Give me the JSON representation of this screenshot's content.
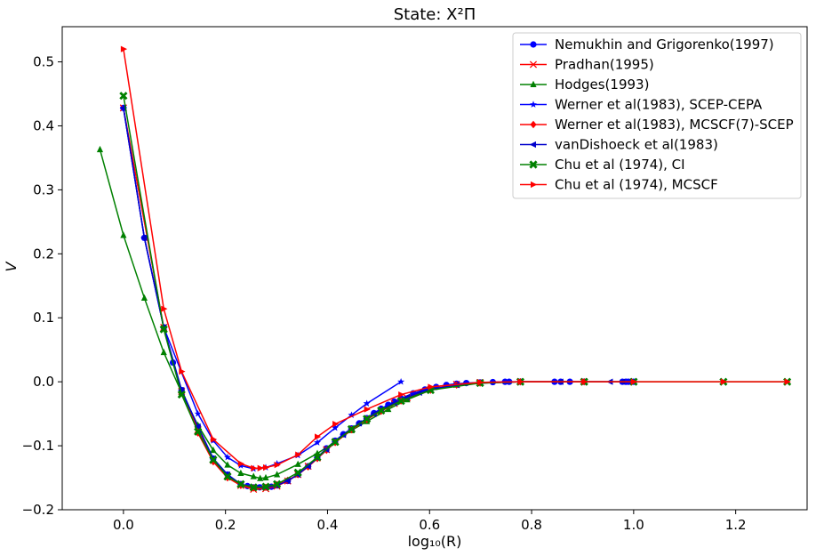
{
  "chart_data": {
    "type": "line",
    "title": "State: X²Π",
    "xlabel": "log₁₀(R)",
    "ylabel": "V",
    "xlim": [
      -0.12,
      1.34
    ],
    "ylim": [
      -0.2,
      0.555
    ],
    "xticks": [
      0.0,
      0.2,
      0.4,
      0.6,
      0.8,
      1.0,
      1.2
    ],
    "yticks": [
      -0.2,
      -0.1,
      0.0,
      0.1,
      0.2,
      0.3,
      0.4,
      0.5
    ],
    "xtick_labels": [
      "0.0",
      "0.2",
      "0.4",
      "0.6",
      "0.8",
      "1.0",
      "1.2"
    ],
    "ytick_labels": [
      "−0.2",
      "−0.1",
      "0.0",
      "0.1",
      "0.2",
      "0.3",
      "0.4",
      "0.5"
    ],
    "legend_position": "top-right",
    "series": [
      {
        "name": "Nemukhin and Grigorenko(1997)",
        "color": "#0000ff",
        "marker": "circle",
        "x": [
          0.0,
          0.041,
          0.079,
          0.097,
          0.114,
          0.146,
          0.176,
          0.204,
          0.23,
          0.243,
          0.255,
          0.267,
          0.279,
          0.29,
          0.301,
          0.322,
          0.342,
          0.362,
          0.38,
          0.398,
          0.415,
          0.431,
          0.447,
          0.462,
          0.477,
          0.491,
          0.505,
          0.519,
          0.531,
          0.544,
          0.568,
          0.591,
          0.613,
          0.633,
          0.653,
          0.672,
          0.699,
          0.724,
          0.748,
          0.756,
          0.778,
          0.845,
          0.857,
          0.875,
          0.903,
          0.978,
          0.985,
          0.99,
          1.0
        ],
        "y": [
          0.428,
          0.225,
          0.085,
          0.03,
          -0.013,
          -0.07,
          -0.12,
          -0.145,
          -0.16,
          -0.163,
          -0.165,
          -0.165,
          -0.165,
          -0.164,
          -0.162,
          -0.155,
          -0.145,
          -0.132,
          -0.118,
          -0.104,
          -0.092,
          -0.082,
          -0.073,
          -0.065,
          -0.057,
          -0.049,
          -0.042,
          -0.036,
          -0.031,
          -0.026,
          -0.018,
          -0.012,
          -0.008,
          -0.005,
          -0.003,
          -0.002,
          -0.001,
          -0.0005,
          0.0,
          0.0,
          0.0,
          0.0,
          0.0,
          0.0,
          0.0,
          0.0,
          0.0,
          0.0,
          0.0
        ]
      },
      {
        "name": "Pradhan(1995)",
        "color": "#ff0000",
        "marker": "x",
        "x": [
          0.0,
          0.079,
          0.114,
          0.146,
          0.176,
          0.204,
          0.23,
          0.255,
          0.279,
          0.301,
          0.322,
          0.342,
          0.362,
          0.38,
          0.398,
          0.415,
          0.447,
          0.477,
          0.505,
          0.531,
          0.556,
          0.602,
          0.653,
          0.699,
          0.778,
          0.903,
          1.0
        ],
        "y": [
          0.428,
          0.085,
          -0.015,
          -0.075,
          -0.123,
          -0.148,
          -0.162,
          -0.168,
          -0.167,
          -0.163,
          -0.155,
          -0.145,
          -0.132,
          -0.119,
          -0.106,
          -0.094,
          -0.074,
          -0.058,
          -0.045,
          -0.034,
          -0.025,
          -0.012,
          -0.004,
          -0.001,
          0.0,
          0.0,
          0.0
        ]
      },
      {
        "name": "Hodges(1993)",
        "color": "#008000",
        "marker": "triangle-up",
        "x": [
          -0.046,
          0.0,
          0.041,
          0.079,
          0.114,
          0.146,
          0.176,
          0.204,
          0.23,
          0.255,
          0.268,
          0.279,
          0.301,
          0.342,
          0.38,
          0.415,
          0.447,
          0.477,
          0.519,
          0.556,
          0.602,
          0.653,
          0.699,
          0.778
        ],
        "y": [
          0.363,
          0.229,
          0.131,
          0.046,
          -0.017,
          -0.068,
          -0.107,
          -0.13,
          -0.143,
          -0.148,
          -0.151,
          -0.15,
          -0.145,
          -0.129,
          -0.112,
          -0.094,
          -0.076,
          -0.062,
          -0.043,
          -0.028,
          -0.013,
          -0.005,
          -0.002,
          0.0
        ]
      },
      {
        "name": "Werner et al(1983), SCEP-CEPA",
        "color": "#0000ff",
        "marker": "star",
        "x": [
          0.0,
          0.041,
          0.079,
          0.146,
          0.176,
          0.204,
          0.23,
          0.255,
          0.279,
          0.301,
          0.342,
          0.38,
          0.415,
          0.447,
          0.477,
          0.544
        ],
        "y": [
          0.428,
          0.225,
          0.085,
          -0.05,
          -0.092,
          -0.118,
          -0.131,
          -0.136,
          -0.134,
          -0.128,
          -0.115,
          -0.095,
          -0.072,
          -0.052,
          -0.034,
          0.0
        ]
      },
      {
        "name": "Werner et al(1983), MCSCF(7)-SCEP",
        "color": "#ff0000",
        "marker": "diamond",
        "x": [
          0.146,
          0.176,
          0.204,
          0.23,
          0.255,
          0.279,
          0.301,
          0.322,
          0.342,
          0.362,
          0.38,
          0.398,
          0.415,
          0.447,
          0.477,
          0.505,
          0.544,
          0.602,
          0.653,
          0.699,
          0.778,
          0.903
        ],
        "y": [
          -0.08,
          -0.125,
          -0.15,
          -0.162,
          -0.166,
          -0.165,
          -0.161,
          -0.154,
          -0.145,
          -0.133,
          -0.12,
          -0.107,
          -0.095,
          -0.075,
          -0.059,
          -0.046,
          -0.03,
          -0.013,
          -0.005,
          -0.002,
          0.0,
          0.0
        ]
      },
      {
        "name": "vanDishoeck et al(1983)",
        "color": "#0000cc",
        "marker": "triangle-left",
        "x": [
          0.0,
          0.041,
          0.079,
          0.114,
          0.146,
          0.176,
          0.204,
          0.23,
          0.255,
          0.279,
          0.301,
          0.322,
          0.342,
          0.362,
          0.38,
          0.398,
          0.415,
          0.431,
          0.447,
          0.462,
          0.477,
          0.491,
          0.505,
          0.531,
          0.556,
          0.58,
          0.602,
          0.653,
          0.699,
          0.778,
          0.857,
          0.954,
          0.978,
          1.0
        ],
        "y": [
          0.428,
          0.225,
          0.085,
          -0.013,
          -0.07,
          -0.12,
          -0.145,
          -0.16,
          -0.165,
          -0.165,
          -0.162,
          -0.155,
          -0.145,
          -0.132,
          -0.119,
          -0.106,
          -0.094,
          -0.083,
          -0.074,
          -0.065,
          -0.058,
          -0.05,
          -0.044,
          -0.033,
          -0.024,
          -0.017,
          -0.012,
          -0.005,
          -0.002,
          0.0,
          0.0,
          0.0,
          0.0,
          0.0
        ]
      },
      {
        "name": "Chu et al (1974), CI",
        "color": "#008000",
        "marker": "x-filled",
        "x": [
          0.0,
          0.079,
          0.114,
          0.146,
          0.176,
          0.204,
          0.23,
          0.255,
          0.279,
          0.301,
          0.342,
          0.38,
          0.415,
          0.447,
          0.477,
          0.505,
          0.544,
          0.602,
          0.699,
          0.778,
          0.903,
          1.0,
          1.176,
          1.301
        ],
        "y": [
          0.447,
          0.082,
          -0.02,
          -0.078,
          -0.122,
          -0.148,
          -0.16,
          -0.165,
          -0.164,
          -0.16,
          -0.142,
          -0.118,
          -0.094,
          -0.074,
          -0.058,
          -0.045,
          -0.03,
          -0.013,
          -0.002,
          0.0,
          0.0,
          0.0,
          0.0,
          0.0
        ]
      },
      {
        "name": "Chu et al (1974), MCSCF",
        "color": "#ff0000",
        "marker": "triangle-right",
        "x": [
          0.0,
          0.079,
          0.114,
          0.176,
          0.23,
          0.255,
          0.268,
          0.279,
          0.301,
          0.342,
          0.38,
          0.415,
          0.477,
          0.544,
          0.602,
          0.699,
          0.778,
          0.903,
          1.0,
          1.176,
          1.301
        ],
        "y": [
          0.52,
          0.114,
          0.016,
          -0.09,
          -0.128,
          -0.135,
          -0.135,
          -0.134,
          -0.13,
          -0.114,
          -0.086,
          -0.066,
          -0.043,
          -0.02,
          -0.008,
          -0.001,
          0.0,
          0.0,
          0.0,
          0.0,
          0.0
        ]
      }
    ]
  }
}
